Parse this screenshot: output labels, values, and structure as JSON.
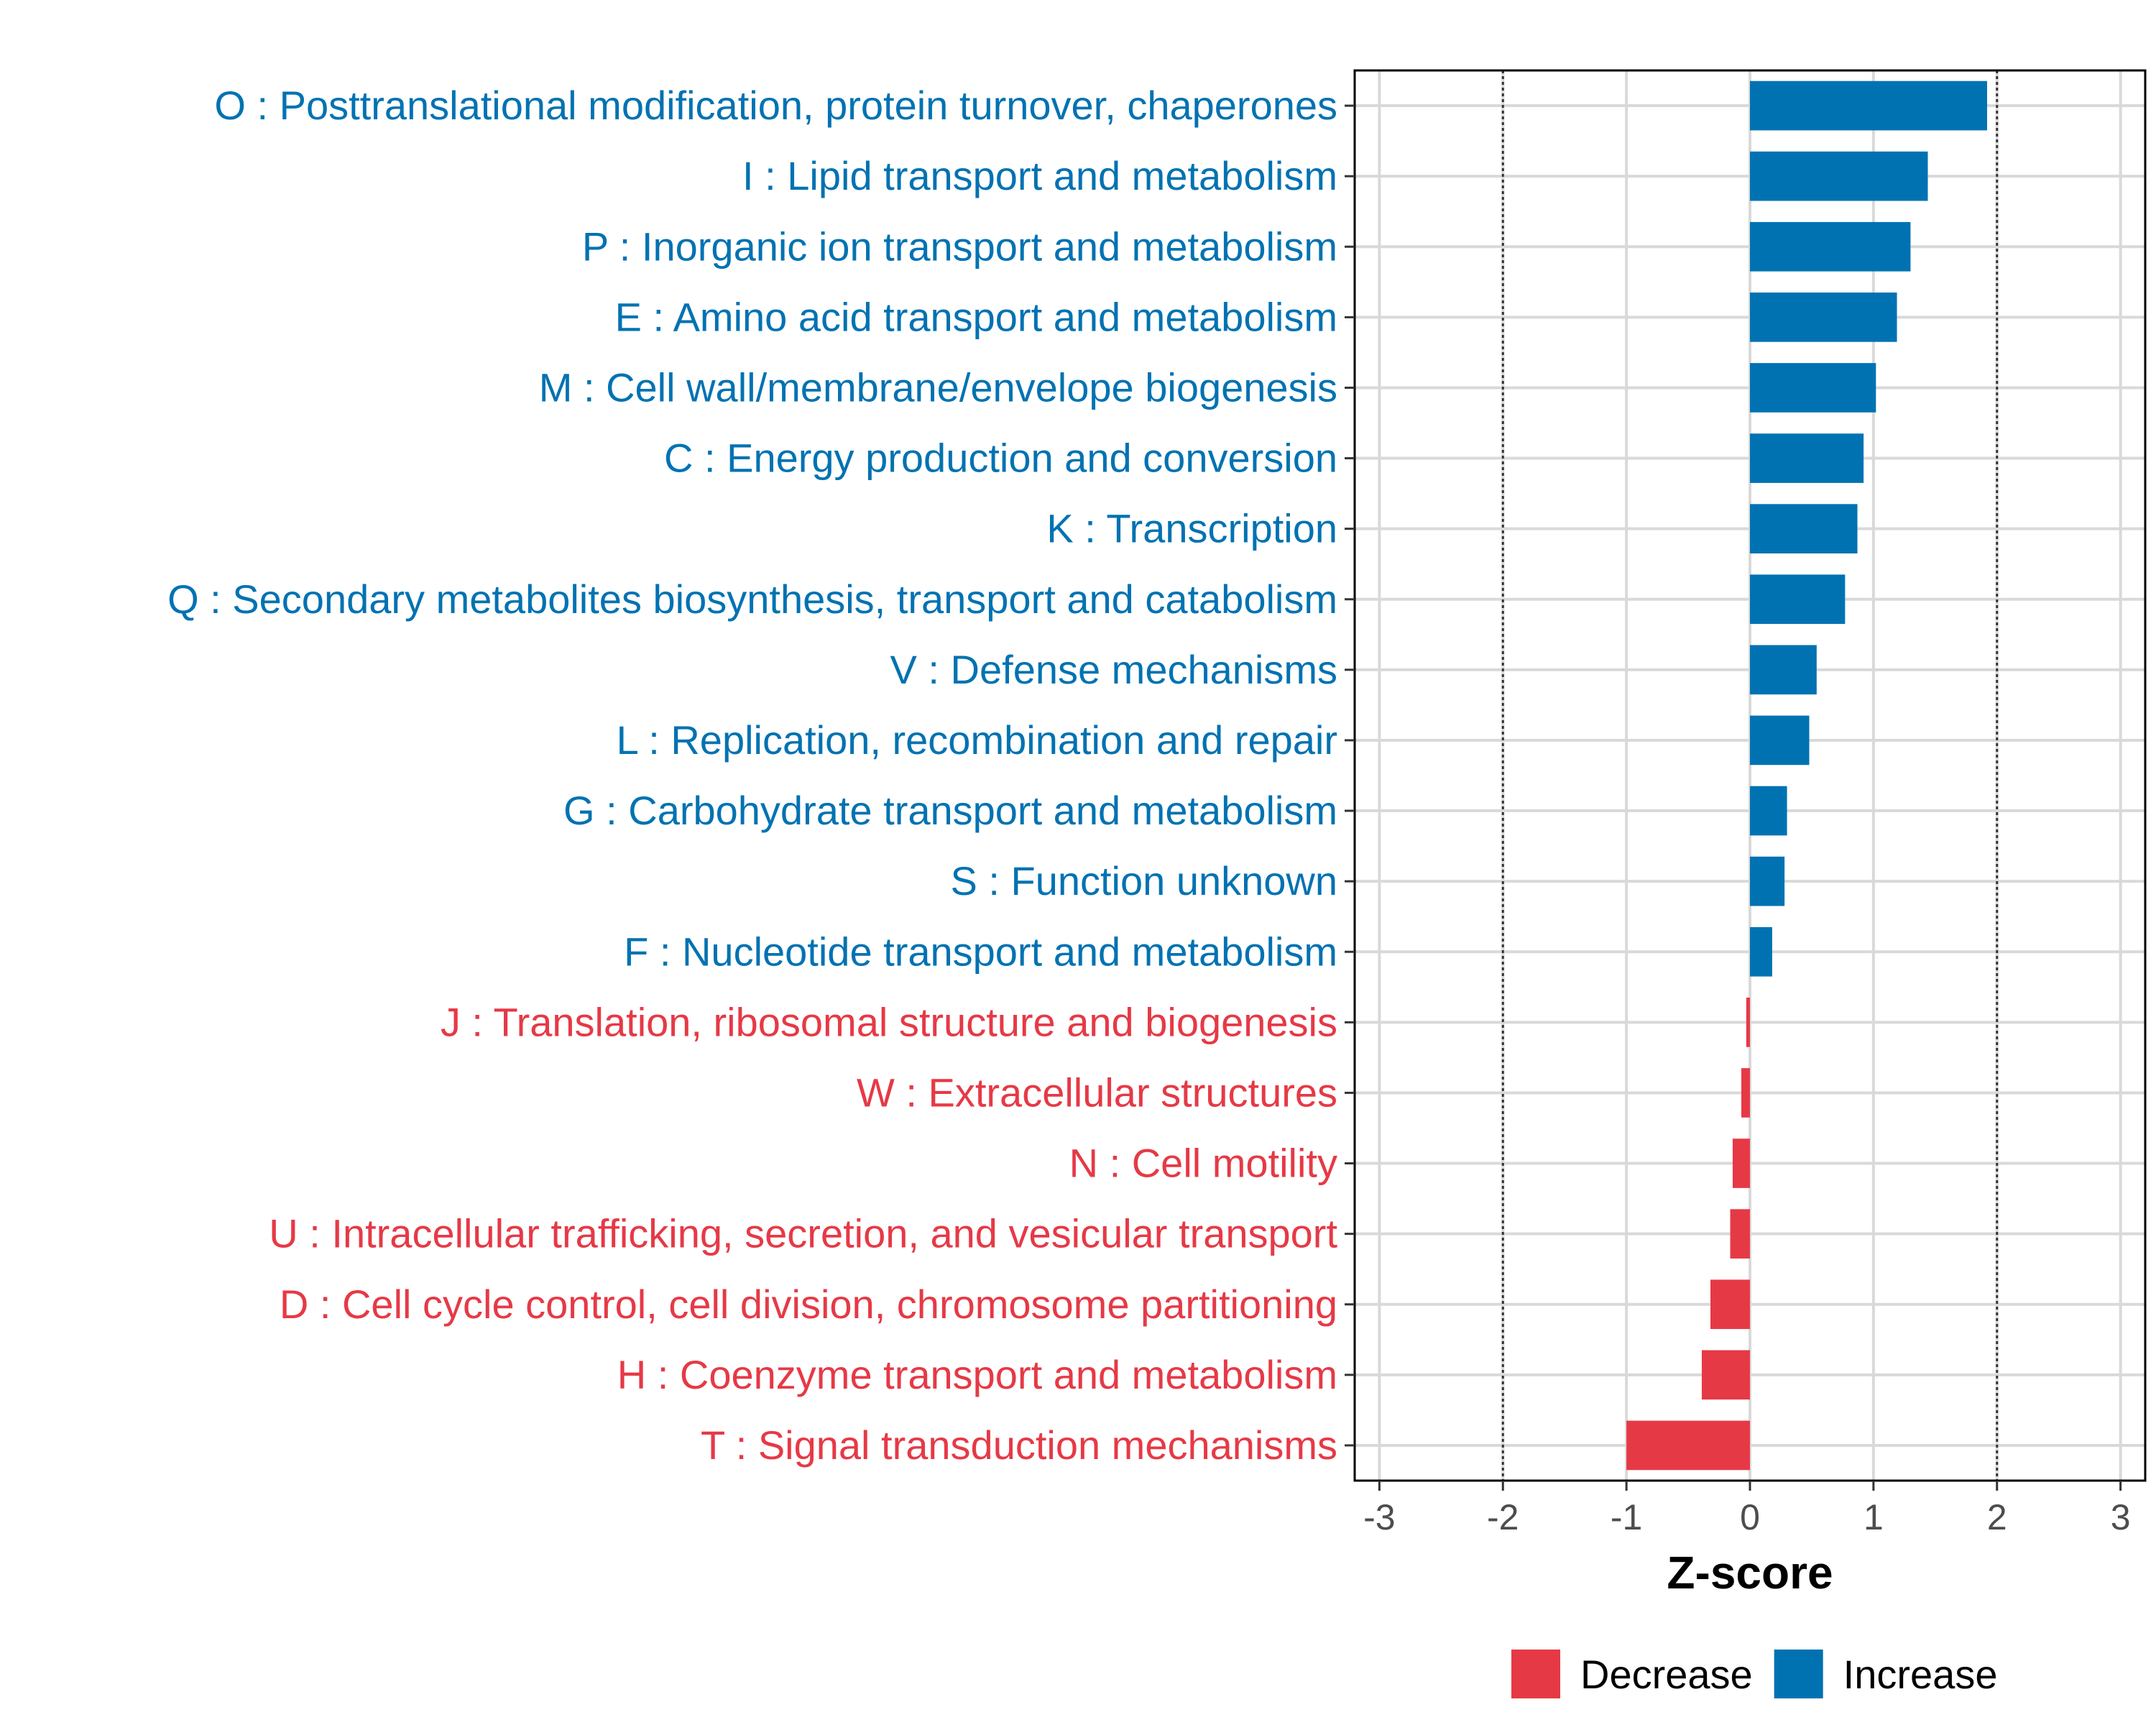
{
  "colors": {
    "increase": "#0072B2",
    "decrease": "#E63946",
    "grid": "#d9d9d9",
    "refline": "#333333"
  },
  "chart_data": {
    "type": "bar",
    "orientation": "horizontal",
    "xlabel": "Z-score",
    "xlim": [
      -3.2,
      3.2
    ],
    "xticks": [
      -3,
      -2,
      -1,
      0,
      1,
      2,
      3
    ],
    "xtick_labels": [
      "-3",
      "-2",
      "-1",
      "0",
      "1",
      "2",
      "3"
    ],
    "reference_lines": [
      -2,
      2
    ],
    "legend": {
      "position": "bottom",
      "items": [
        {
          "label": "Decrease",
          "color_key": "decrease"
        },
        {
          "label": "Increase",
          "color_key": "increase"
        }
      ]
    },
    "categories": [
      "O : Posttranslational modification, protein turnover, chaperones",
      "I : Lipid transport and metabolism",
      "P : Inorganic ion transport and metabolism",
      "E : Amino acid transport and metabolism",
      "M : Cell wall/membrane/envelope biogenesis",
      "C : Energy production and conversion",
      "K : Transcription",
      "Q : Secondary metabolites biosynthesis, transport and catabolism",
      "V : Defense mechanisms",
      "L : Replication, recombination and repair",
      "G : Carbohydrate transport and metabolism",
      "S : Function unknown",
      "F : Nucleotide transport and metabolism",
      "J : Translation, ribosomal structure and biogenesis",
      "W : Extracellular structures",
      "N : Cell motility",
      "U : Intracellular trafficking, secretion, and vesicular transport",
      "D : Cell cycle control, cell division, chromosome partitioning",
      "H : Coenzyme transport and metabolism",
      "T : Signal transduction mechanisms"
    ],
    "values": [
      1.92,
      1.44,
      1.3,
      1.19,
      1.02,
      0.92,
      0.87,
      0.77,
      0.54,
      0.48,
      0.3,
      0.28,
      0.18,
      -0.03,
      -0.07,
      -0.14,
      -0.16,
      -0.32,
      -0.39,
      -1.0
    ],
    "groups": [
      "Increase",
      "Increase",
      "Increase",
      "Increase",
      "Increase",
      "Increase",
      "Increase",
      "Increase",
      "Increase",
      "Increase",
      "Increase",
      "Increase",
      "Increase",
      "Decrease",
      "Decrease",
      "Decrease",
      "Decrease",
      "Decrease",
      "Decrease",
      "Decrease"
    ]
  }
}
